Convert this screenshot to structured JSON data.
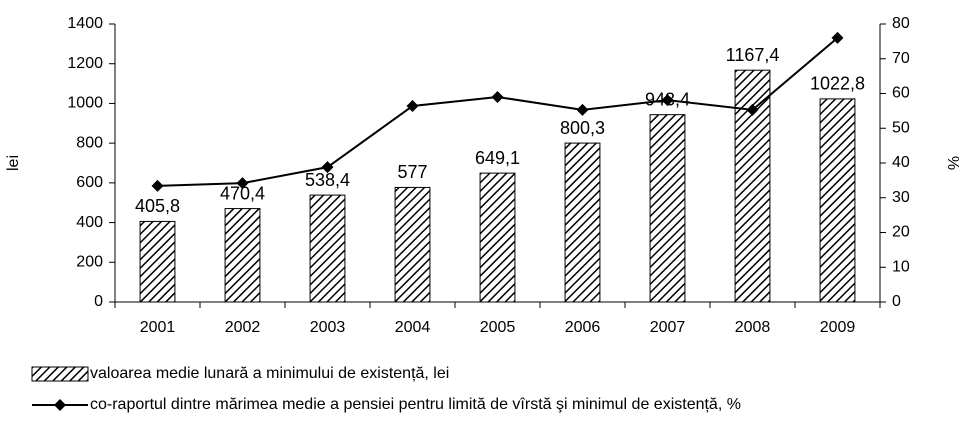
{
  "chart_data": {
    "type": "bar",
    "categories": [
      "2001",
      "2002",
      "2003",
      "2004",
      "2005",
      "2006",
      "2007",
      "2008",
      "2009"
    ],
    "series": [
      {
        "name": "valoarea medie lunară a minimului de existență, lei",
        "color": "#000000",
        "values": [
          405.8,
          470.4,
          538.4,
          577,
          649.1,
          800.3,
          943.4,
          1167.4,
          1022.8
        ],
        "value_labels": [
          "405,8",
          "470,4",
          "538,4",
          "577",
          "649,1",
          "800,3",
          "943,4",
          "1167,4",
          "1022,8"
        ]
      },
      {
        "name": "co-raportul dintre mărimea medie a pensiei pentru limită de vîrstă şi minimul de existență, %",
        "color": "#000000",
        "type": "line",
        "axis": "y2",
        "values": [
          33.4,
          34.2,
          38.8,
          56.4,
          59,
          55.3,
          58.1,
          55.3,
          76
        ]
      }
    ],
    "ylabel": "lei",
    "y2label": "%",
    "ylim": [
      0,
      1400
    ],
    "yticks": [
      0,
      200,
      400,
      600,
      800,
      1000,
      1200,
      1400
    ],
    "y2lim": [
      0,
      80
    ],
    "y2ticks": [
      0,
      10,
      20,
      30,
      40,
      50,
      60,
      70,
      80
    ]
  }
}
